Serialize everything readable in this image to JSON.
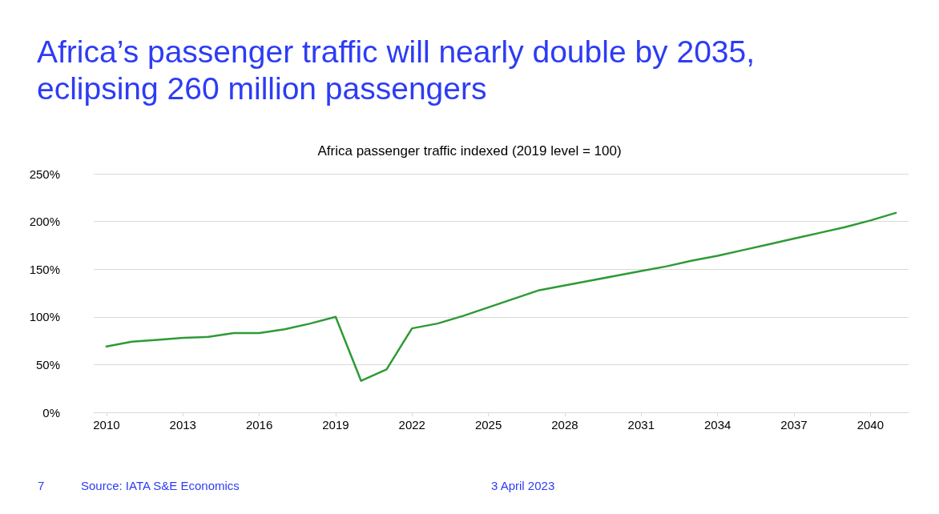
{
  "chart_data": {
    "type": "line",
    "title": "Africa’s passenger traffic will nearly double by 2035, eclipsing 260 million passengers",
    "subtitle": "Africa passenger traffic indexed (2019 level = 100)",
    "categories": [
      "2010",
      null,
      null,
      "2013",
      null,
      null,
      "2016",
      null,
      null,
      "2019",
      null,
      null,
      "2022",
      null,
      null,
      "2025",
      null,
      null,
      "2028",
      null,
      null,
      "2031",
      null,
      null,
      "2034",
      null,
      null,
      "2037",
      null,
      null,
      "2040",
      null
    ],
    "series": [
      {
        "color": "#2e9a36",
        "values": [
          69,
          74,
          76,
          78,
          79,
          83,
          83,
          87,
          93,
          100,
          33,
          45,
          88,
          93,
          101,
          110,
          119,
          128,
          133,
          138,
          143,
          148,
          153,
          159,
          164,
          170,
          176,
          182,
          188,
          194,
          201,
          209
        ]
      }
    ],
    "ylim": [
      0,
      250
    ],
    "yticks": [
      {
        "value": 0,
        "label": "0%"
      },
      {
        "value": 50,
        "label": "50%"
      },
      {
        "value": 100,
        "label": "100%"
      },
      {
        "value": 150,
        "label": "150%"
      },
      {
        "value": 200,
        "label": "200%"
      },
      {
        "value": 250,
        "label": "250%"
      }
    ],
    "grid": "y",
    "marker": "none",
    "line_style": "solid",
    "annotations": [
      "7",
      "Source: IATA S&E Economics",
      "3 April 2023"
    ]
  }
}
